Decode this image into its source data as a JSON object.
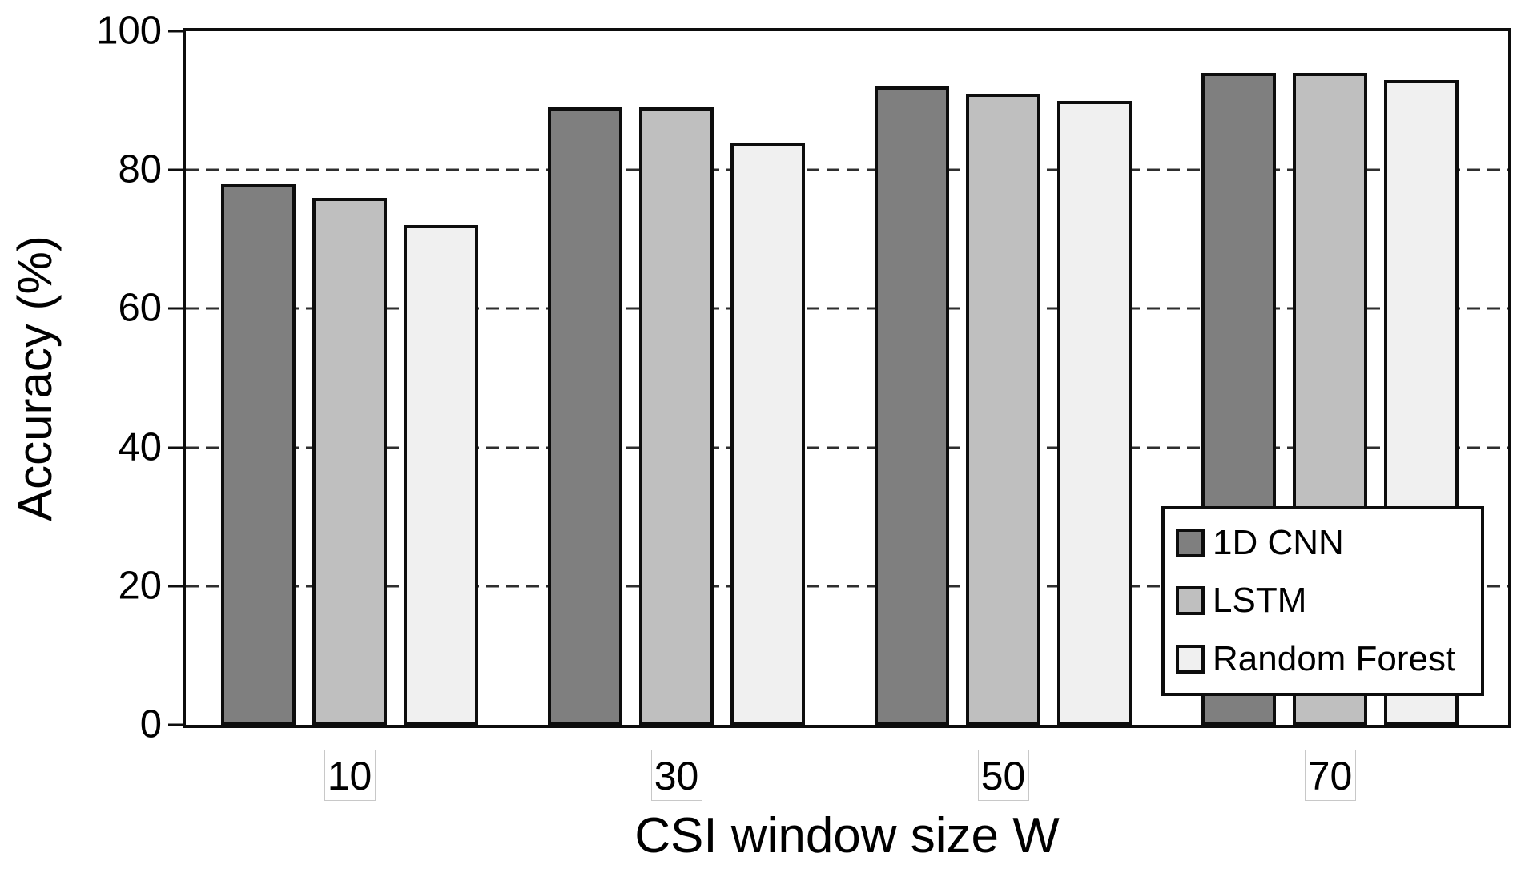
{
  "chart_data": {
    "type": "bar",
    "title": "",
    "xlabel": "CSI window size W",
    "ylabel": "Accuracy (%)",
    "ylim": [
      0,
      100
    ],
    "yticks": [
      0,
      20,
      40,
      60,
      80,
      100
    ],
    "gridlines": [
      20,
      40,
      60,
      80
    ],
    "grid_style": "dashed horizontal",
    "categories": [
      "10",
      "30",
      "50",
      "70"
    ],
    "series": [
      {
        "name": "1D CNN",
        "color": "#7f7f7f",
        "values": [
          78,
          89,
          92,
          94
        ]
      },
      {
        "name": "LSTM",
        "color": "#bfbfbf",
        "values": [
          76,
          89,
          91,
          94
        ]
      },
      {
        "name": "Random Forest",
        "color": "#f0f0f0",
        "values": [
          72,
          84,
          90,
          93
        ]
      }
    ],
    "legend_position": "inside bottom-right",
    "bar_border_color": "#0d0d0d",
    "frame_color": "#0d0d0d",
    "xtick_box_border_color": "#c8c8c8"
  }
}
